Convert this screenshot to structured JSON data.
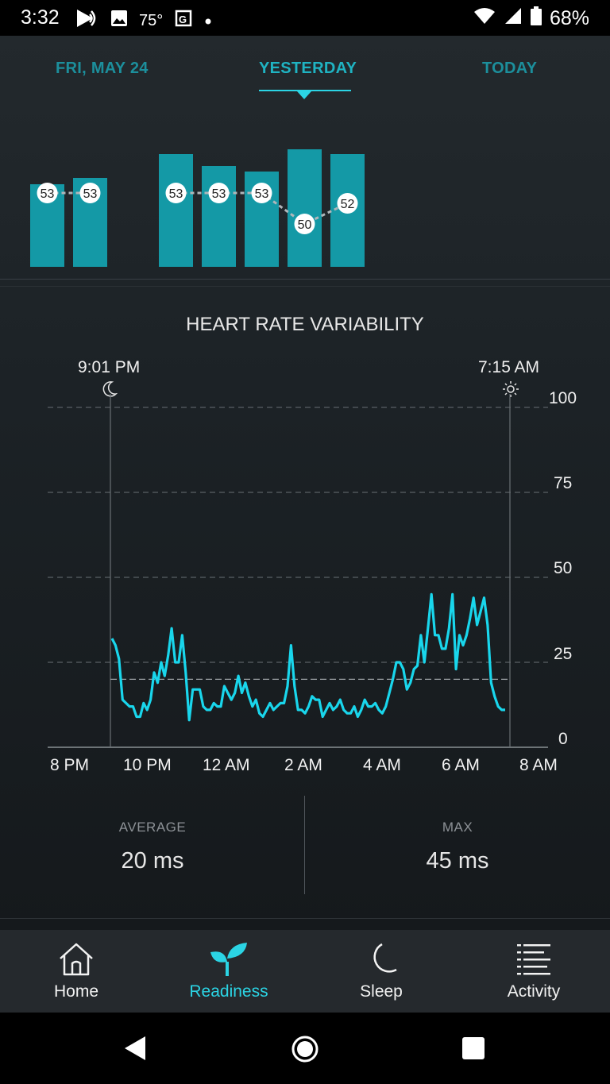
{
  "status_bar": {
    "time": "3:32",
    "temperature": "75°",
    "battery": "68%",
    "icons": [
      "cast-icon",
      "image-icon",
      "maps-icon",
      "notification-dot-icon",
      "wifi-icon",
      "signal-icon",
      "battery-icon"
    ]
  },
  "tabs": {
    "items": [
      {
        "label": "FRI, MAY 24"
      },
      {
        "label": "YESTERDAY"
      },
      {
        "label": "TODAY"
      }
    ],
    "selected": "YESTERDAY"
  },
  "score_bars": {
    "values": [
      53,
      53,
      53,
      53,
      53,
      50,
      52
    ],
    "bar_color": "#1499a6"
  },
  "hrv": {
    "title": "HEART RATE VARIABILITY",
    "bedtime": "9:01 PM",
    "wake_time": "7:15 AM",
    "bedtime_icon": "moon-icon",
    "wake_icon": "sun-icon"
  },
  "chart_data": {
    "type": "line",
    "x_labels": [
      "8 PM",
      "10 PM",
      "12 AM",
      "2 AM",
      "4 AM",
      "6 AM",
      "8 AM"
    ],
    "y_ticks": [
      0,
      25,
      50,
      75,
      100
    ],
    "ylim": [
      0,
      100
    ],
    "average_line": 20,
    "line_color": "#19d6ec",
    "series": [
      {
        "values": [
          32,
          30,
          26,
          14,
          13,
          12,
          12,
          9,
          9,
          13,
          11,
          14,
          22,
          19,
          25,
          21,
          27,
          35,
          25,
          25,
          33,
          22,
          8,
          17,
          17,
          17,
          12,
          11,
          11,
          13,
          12,
          12,
          18,
          16,
          14,
          16,
          21,
          16,
          19,
          15,
          12,
          14,
          10,
          9,
          11,
          13,
          11,
          12,
          13,
          13,
          18,
          30,
          18,
          11,
          11,
          10,
          12,
          15,
          14,
          14,
          9,
          11,
          13,
          11,
          12,
          14,
          11,
          10,
          10,
          12,
          9,
          11,
          14,
          12,
          12,
          13,
          11,
          10,
          12,
          16,
          20,
          25,
          25,
          23,
          17,
          19,
          23,
          24,
          33,
          25,
          35,
          45,
          33,
          33,
          29,
          29,
          35,
          45,
          23,
          33,
          30,
          33,
          38,
          44,
          36,
          40,
          44,
          36,
          19,
          15,
          12,
          11,
          11
        ]
      }
    ]
  },
  "stats": {
    "average_label": "AVERAGE",
    "average_value": "20 ms",
    "max_label": "MAX",
    "max_value": "45 ms"
  },
  "nav": {
    "items": [
      {
        "label": "Home",
        "icon": "home-icon"
      },
      {
        "label": "Readiness",
        "icon": "readiness-sprout-icon"
      },
      {
        "label": "Sleep",
        "icon": "moon-icon"
      },
      {
        "label": "Activity",
        "icon": "activity-list-icon"
      }
    ],
    "active": "Readiness",
    "active_color": "#2bd4e4"
  },
  "system_nav": {
    "icons": [
      "back-icon",
      "home-circle-icon",
      "recents-icon"
    ]
  }
}
